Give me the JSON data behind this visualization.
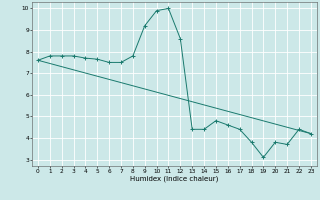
{
  "title": "",
  "xlabel": "Humidex (Indice chaleur)",
  "bg_color": "#cce8e8",
  "grid_color": "#ffffff",
  "line_color": "#1a7a6e",
  "xlim": [
    -0.5,
    23.5
  ],
  "ylim": [
    2.7,
    10.3
  ],
  "xticks": [
    0,
    1,
    2,
    3,
    4,
    5,
    6,
    7,
    8,
    9,
    10,
    11,
    12,
    13,
    14,
    15,
    16,
    17,
    18,
    19,
    20,
    21,
    22,
    23
  ],
  "yticks": [
    3,
    4,
    5,
    6,
    7,
    8,
    9,
    10
  ],
  "line1_x": [
    0,
    1,
    2,
    3,
    4,
    5,
    6,
    7,
    8,
    9,
    10,
    11,
    12,
    13,
    14,
    15,
    16,
    17,
    18,
    19,
    20,
    21,
    22,
    23
  ],
  "line1_y": [
    7.6,
    7.8,
    7.8,
    7.8,
    7.7,
    7.65,
    7.5,
    7.5,
    7.8,
    9.2,
    9.9,
    10.0,
    8.6,
    4.4,
    4.4,
    4.8,
    4.6,
    4.4,
    3.8,
    3.1,
    3.8,
    3.7,
    4.4,
    4.2
  ],
  "line2_x": [
    0,
    23
  ],
  "line2_y": [
    7.6,
    4.2
  ]
}
